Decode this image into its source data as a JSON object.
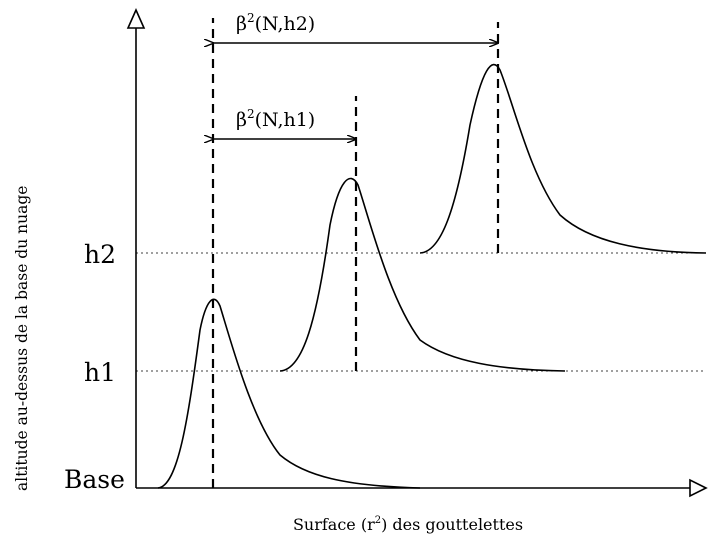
{
  "diagram": {
    "y_axis_label": "altitude au-dessus de la base du nuage",
    "x_axis_label_prefix": "Surface (r",
    "x_axis_label_sup": "2",
    "x_axis_label_suffix": ") des gouttelettes",
    "levels": [
      {
        "label": "Base"
      },
      {
        "label": "h1"
      },
      {
        "label": "h2"
      }
    ],
    "dimension_labels": [
      {
        "prefix": "β",
        "sup": "2",
        "suffix": "(N,h1)"
      },
      {
        "prefix": "β",
        "sup": "2",
        "suffix": "(N,h2)"
      }
    ]
  }
}
